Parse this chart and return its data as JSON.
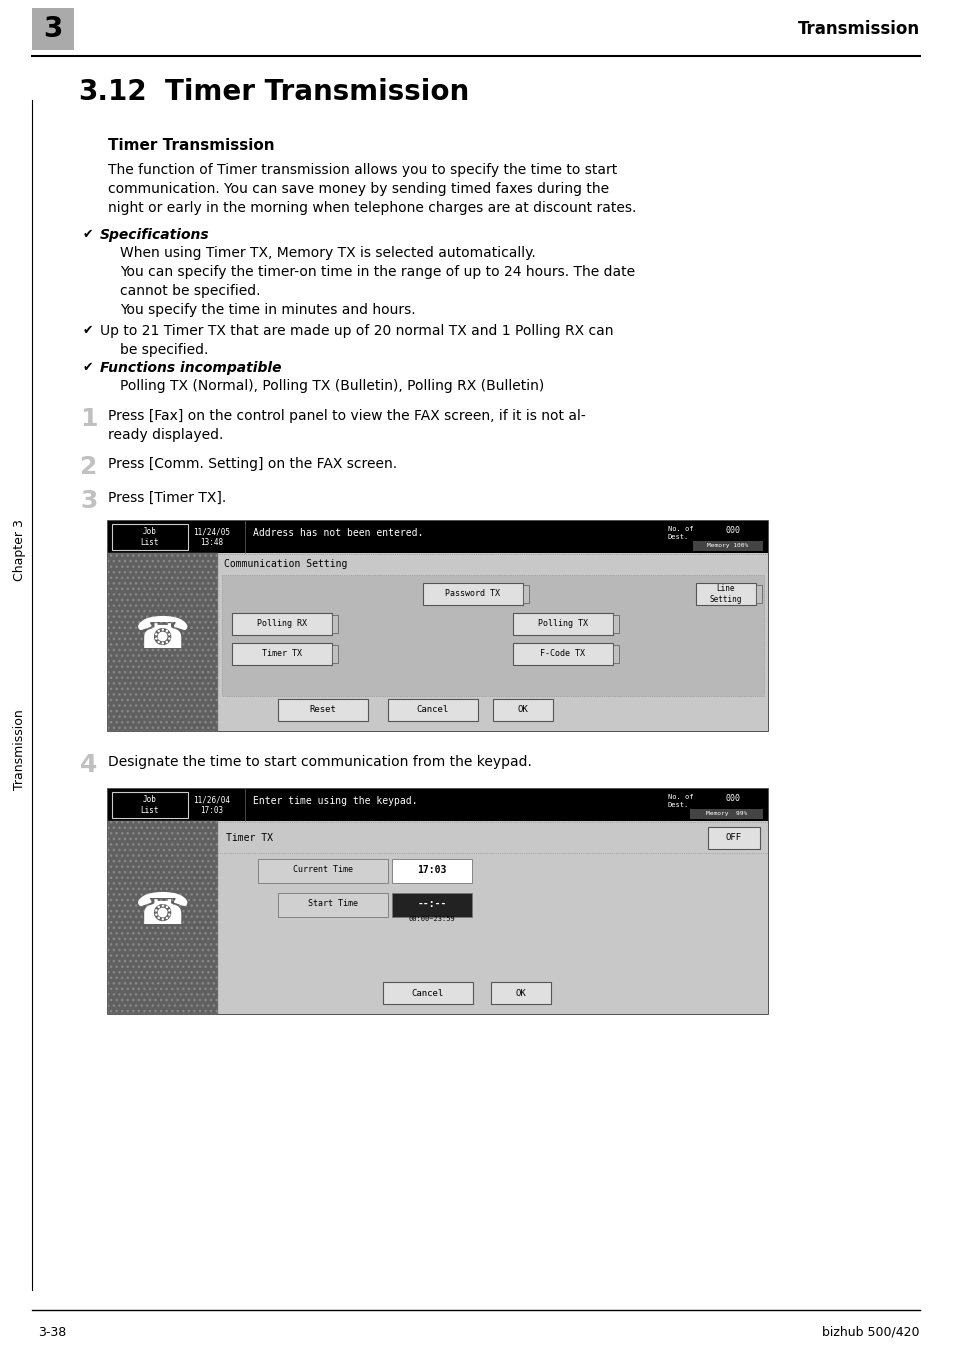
{
  "page_bg": "#ffffff",
  "header_text": "Transmission",
  "header_chapter_num": "3",
  "header_chapter_bg": "#aaaaaa",
  "section_number": "3.12",
  "section_title": "Timer Transmission",
  "subsection_title": "Timer Transmission",
  "body_text_1a": "The function of Timer transmission allows you to specify the time to start",
  "body_text_1b": "communication. You can save money by sending timed faxes during the",
  "body_text_1c": "night or early in the morning when telephone charges are at discount rates.",
  "bullet_specs_title": "Specifications",
  "bullet_specs_lines": [
    "When using Timer TX, Memory TX is selected automatically.",
    "You can specify the timer-on time in the range of up to 24 hours. The date",
    "cannot be specified.",
    "You specify the time in minutes and hours."
  ],
  "bullet_2a": "Up to 21 Timer TX that are made up of 20 normal TX and 1 Polling RX can",
  "bullet_2b": "be specified.",
  "bullet_funcs_title": "Functions incompatible",
  "bullet_funcs_body": "Polling TX (Normal), Polling TX (Bulletin), Polling RX (Bulletin)",
  "step1_num": "1",
  "step1_texta": "Press [Fax] on the control panel to view the FAX screen, if it is not al-",
  "step1_textb": "ready displayed.",
  "step2_num": "2",
  "step2_text": "Press [Comm. Setting] on the FAX screen.",
  "step3_num": "3",
  "step3_text": "Press [Timer TX].",
  "step4_num": "4",
  "step4_text": "Designate the time to start communication from the keypad.",
  "footer_left": "3-38",
  "footer_right": "bizhub 500/420",
  "sidebar_top_text": "Chapter 3",
  "sidebar_bottom_text": "Transmission"
}
